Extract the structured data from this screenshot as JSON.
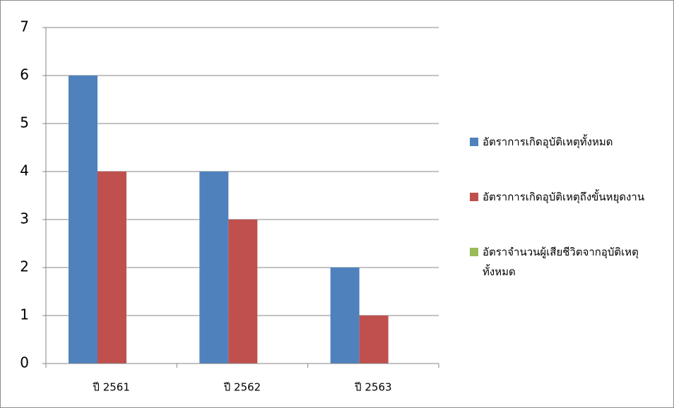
{
  "chart_data": {
    "type": "bar",
    "categories": [
      "ปี 2561",
      "ปี 2562",
      "ปี 2563"
    ],
    "series": [
      {
        "name": "อัตราการเกิดอุบัติเหตุทั้งหมด",
        "color": "#4f81bd",
        "values": [
          6,
          4,
          2
        ]
      },
      {
        "name": "อัตราการเกิดอุบัติเหตุถึงขั้นหยุดงาน",
        "color": "#c0504d",
        "values": [
          4,
          3,
          1
        ]
      },
      {
        "name": "อัตราจำนวนผู้เสียชีวิตจากอุบัติเหตุทั้งหมด",
        "color": "#9bbb59",
        "values": [
          0,
          0,
          0
        ]
      }
    ],
    "ylim": [
      0,
      7
    ],
    "yticks": [
      0,
      1,
      2,
      3,
      4,
      5,
      6,
      7
    ],
    "grid": true,
    "legend": "right"
  }
}
